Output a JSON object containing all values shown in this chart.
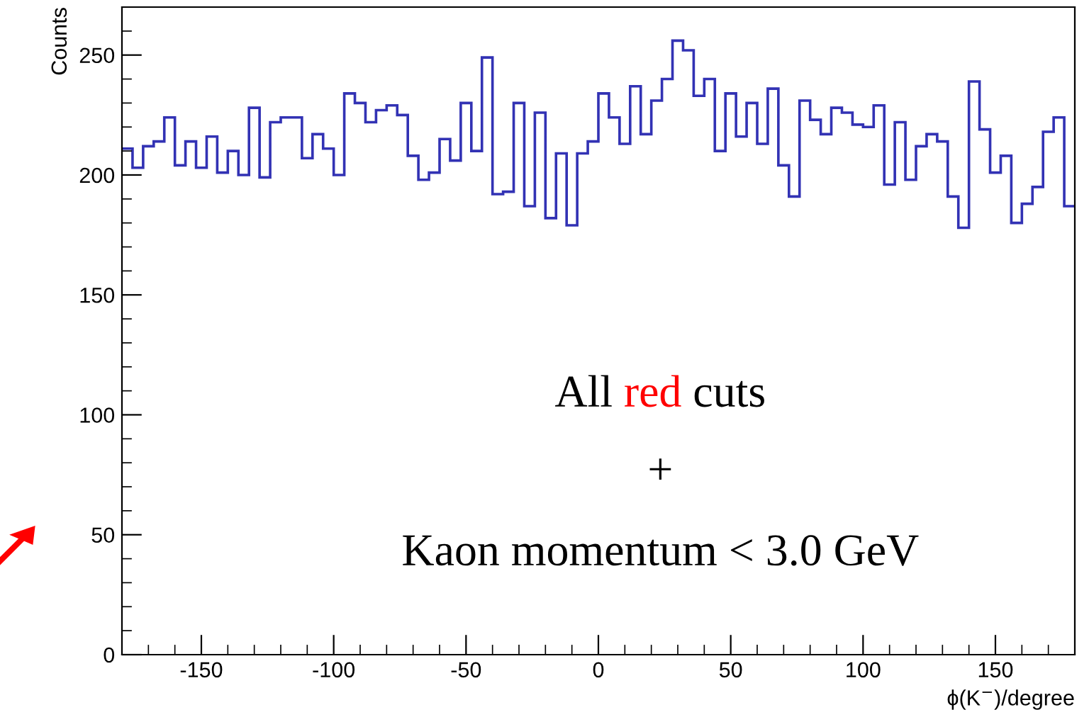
{
  "chart_data": {
    "type": "histogram",
    "ylabel": "Counts",
    "xlabel": "ϕ(K$^{−}$)/degree",
    "bins": [
      -180,
      -176,
      -172,
      -168,
      -164,
      -160,
      -156,
      -152,
      -148,
      -144,
      -140,
      -136,
      -132,
      -128,
      -124,
      -120,
      -116,
      -112,
      -108,
      -104,
      -100,
      -96,
      -92,
      -88,
      -84,
      -80,
      -76,
      -72,
      -68,
      -64,
      -60,
      -56,
      -52,
      -48,
      -44,
      -40,
      -36,
      -32,
      -28,
      -24,
      -20,
      -16,
      -12,
      -8,
      -4,
      0,
      4,
      8,
      12,
      16,
      20,
      24,
      28,
      32,
      36,
      40,
      44,
      48,
      52,
      56,
      60,
      64,
      68,
      72,
      76,
      80,
      84,
      88,
      92,
      96,
      100,
      104,
      108,
      112,
      116,
      120,
      124,
      128,
      132,
      136,
      140,
      144,
      148,
      152,
      156,
      160,
      164,
      168,
      172,
      176,
      180
    ],
    "values": [
      211,
      203,
      212,
      214,
      224,
      204,
      214,
      203,
      216,
      201,
      210,
      200,
      228,
      199,
      222,
      224,
      224,
      207,
      217,
      211,
      200,
      234,
      230,
      222,
      227,
      229,
      225,
      208,
      198,
      201,
      215,
      206,
      230,
      210,
      249,
      192,
      193,
      230,
      187,
      226,
      182,
      209,
      179,
      209,
      214,
      234,
      224,
      213,
      237,
      217,
      231,
      240,
      256,
      252,
      233,
      240,
      210,
      234,
      216,
      230,
      213,
      236,
      204,
      191,
      231,
      223,
      217,
      228,
      226,
      221,
      220,
      229,
      196,
      222,
      198,
      212,
      217,
      214,
      191,
      178,
      239,
      219,
      201,
      208,
      180,
      188,
      195,
      218,
      224,
      187
    ],
    "color": "#3232b4",
    "xlim": [
      -180,
      180
    ],
    "xticks": [
      -150,
      -100,
      -50,
      0,
      50,
      100,
      150
    ],
    "ylim": [
      0,
      270
    ],
    "yticks": [
      0,
      50,
      100,
      150,
      200,
      250
    ],
    "grid": false,
    "legend": false,
    "annotations": [
      "All red cuts",
      "+",
      "Kaon momentum < 3.0 GeV"
    ]
  }
}
